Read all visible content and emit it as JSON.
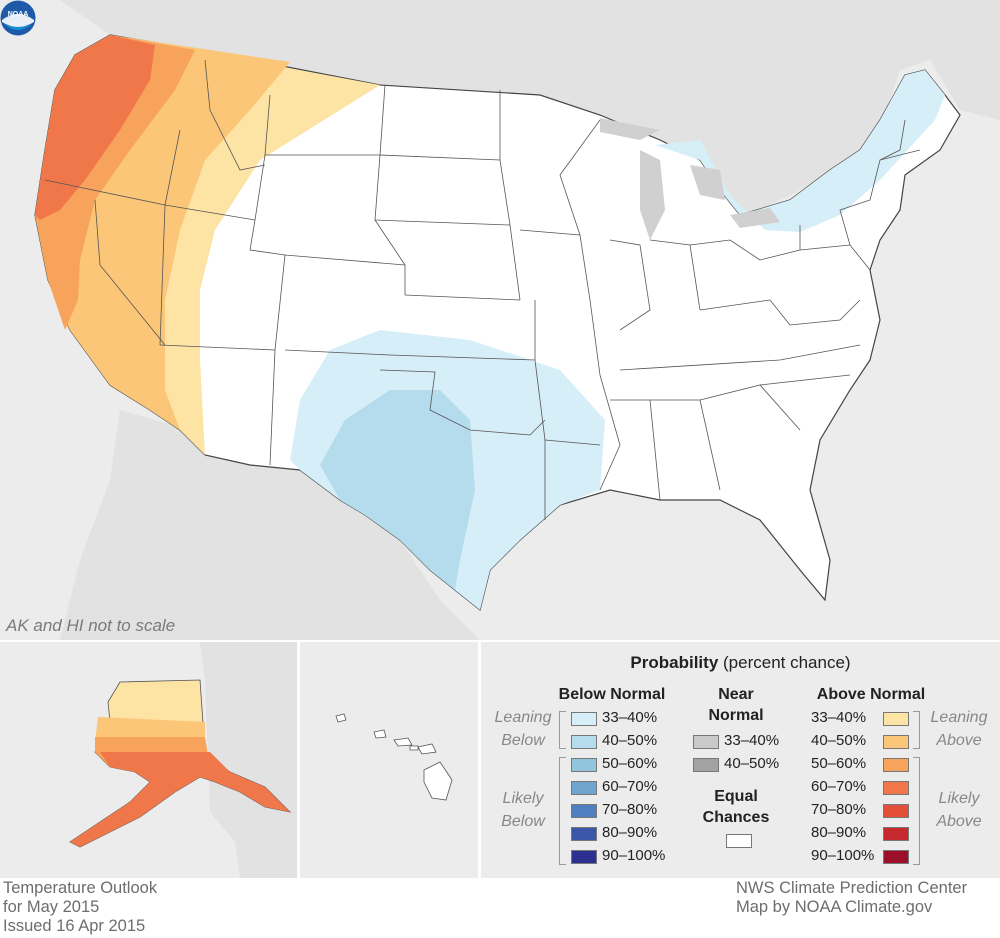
{
  "title": "Temperature Outlook",
  "period": "for May 2015",
  "issued": "Issued 16 Apr 2015",
  "credit_line1": "NWS Climate Prediction Center",
  "credit_line2": "Map by NOAA Climate.gov",
  "scale_note": "AK and HI not to scale",
  "logo_text": "NOAA",
  "legend": {
    "title_bold": "Probability",
    "title_rest": " (percent chance)",
    "below_header": "Below Normal",
    "near_header_1": "Near",
    "near_header_2": "Normal",
    "above_header": "Above Normal",
    "leaning_1": "Leaning",
    "below_word": "Below",
    "likely_1": "Likely",
    "above_word": "Above",
    "equal_1": "Equal",
    "equal_2": "Chances",
    "below_items": [
      {
        "label": "33–40%",
        "color": "#d6eef7"
      },
      {
        "label": "40–50%",
        "color": "#b4dcec"
      },
      {
        "label": "50–60%",
        "color": "#93c4de"
      },
      {
        "label": "60–70%",
        "color": "#6fa4cf"
      },
      {
        "label": "70–80%",
        "color": "#4f7fbe"
      },
      {
        "label": "80–90%",
        "color": "#3a56a8"
      },
      {
        "label": "90–100%",
        "color": "#2b2f8f"
      }
    ],
    "near_items": [
      {
        "label": "33–40%",
        "color": "#c9c9c9"
      },
      {
        "label": "40–50%",
        "color": "#a2a2a2"
      }
    ],
    "equal_color": "#ffffff",
    "above_items": [
      {
        "label": "33–40%",
        "color": "#fde3a4"
      },
      {
        "label": "40–50%",
        "color": "#fbc677"
      },
      {
        "label": "50–60%",
        "color": "#f7a35c"
      },
      {
        "label": "60–70%",
        "color": "#f0774a"
      },
      {
        "label": "70–80%",
        "color": "#e3503a"
      },
      {
        "label": "80–90%",
        "color": "#c62a2f"
      },
      {
        "label": "90–100%",
        "color": "#9c0f29"
      }
    ]
  },
  "outlook_regions": [
    {
      "category": "above",
      "probability": "33–40%",
      "area": "Arizona / Utah / Idaho / Montana band",
      "color": "#fde3a4"
    },
    {
      "category": "above",
      "probability": "40–50%",
      "area": "Nevada / Idaho / Montana / S California",
      "color": "#fbc677"
    },
    {
      "category": "above",
      "probability": "50–60%",
      "area": "California / Oregon / Washington",
      "color": "#f7a35c"
    },
    {
      "category": "above",
      "probability": "60–70%",
      "area": "Pacific Northwest coast",
      "color": "#f0774a"
    },
    {
      "category": "below",
      "probability": "33–40%",
      "area": "Southern Plains / Great Lakes / New England",
      "color": "#d6eef7"
    },
    {
      "category": "below",
      "probability": "40–50%",
      "area": "West Texas",
      "color": "#b4dcec"
    },
    {
      "category": "above",
      "probability": "50–60%",
      "area": "Alaska (south)",
      "color": "#f7a35c"
    }
  ]
}
